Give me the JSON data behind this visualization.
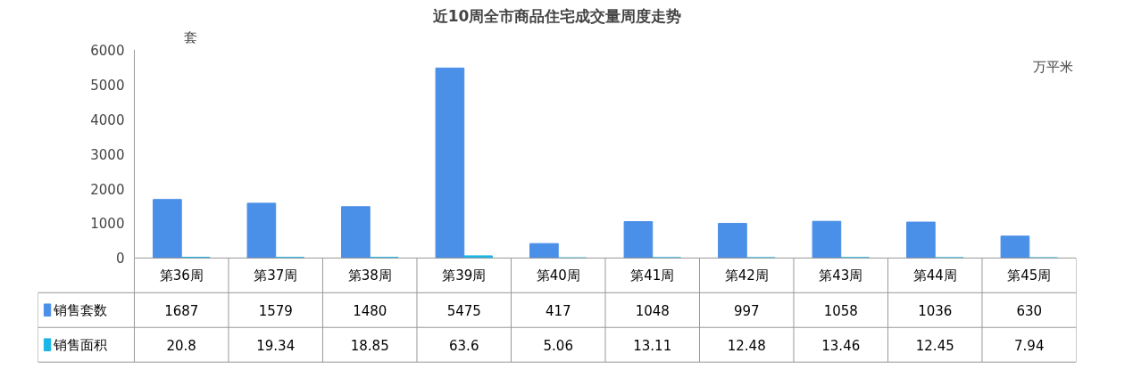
{
  "chart_data": {
    "type": "bar",
    "title": "近10周全市商品住宅成交量周度走势",
    "ylabel": "套",
    "y2label": "万平米",
    "categories": [
      "第36周",
      "第37周",
      "第38周",
      "第39周",
      "第40周",
      "第41周",
      "第42周",
      "第43周",
      "第44周",
      "第45周"
    ],
    "series": [
      {
        "name": "销售套数",
        "color": "#4a8fe8",
        "values": [
          1687,
          1579,
          1480,
          5475,
          417,
          1048,
          997,
          1058,
          1036,
          630
        ]
      },
      {
        "name": "销售面积",
        "color": "#1ab6e8",
        "values": [
          20.8,
          19.34,
          18.85,
          63.6,
          5.06,
          13.11,
          12.48,
          13.46,
          12.45,
          7.94
        ]
      }
    ],
    "ylim": [
      0,
      6000
    ],
    "yticks": [
      0,
      1000,
      2000,
      3000,
      4000,
      5000,
      6000
    ],
    "data_labels": true,
    "grid": false,
    "legend": "bottom left"
  }
}
